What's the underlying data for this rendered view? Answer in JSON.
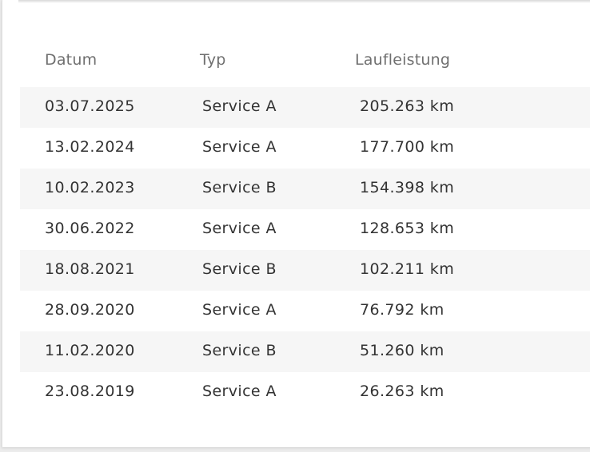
{
  "table": {
    "headers": {
      "date": "Datum",
      "type": "Typ",
      "mileage": "Laufleistung"
    },
    "rows": [
      {
        "date": "03.07.2025",
        "type": "Service A",
        "mileage": "205.263 km"
      },
      {
        "date": "13.02.2024",
        "type": "Service A",
        "mileage": "177.700 km"
      },
      {
        "date": "10.02.2023",
        "type": "Service B",
        "mileage": "154.398 km"
      },
      {
        "date": "30.06.2022",
        "type": "Service A",
        "mileage": "128.653 km"
      },
      {
        "date": "18.08.2021",
        "type": "Service B",
        "mileage": "102.211 km"
      },
      {
        "date": "28.09.2020",
        "type": "Service A",
        "mileage": "76.792 km"
      },
      {
        "date": "11.02.2020",
        "type": "Service B",
        "mileage": "51.260 km"
      },
      {
        "date": "23.08.2019",
        "type": "Service A",
        "mileage": "26.263 km"
      }
    ]
  },
  "colors": {
    "row_shade": "#f6f6f6",
    "header_text": "#6f6f6f",
    "cell_text": "#333333"
  }
}
